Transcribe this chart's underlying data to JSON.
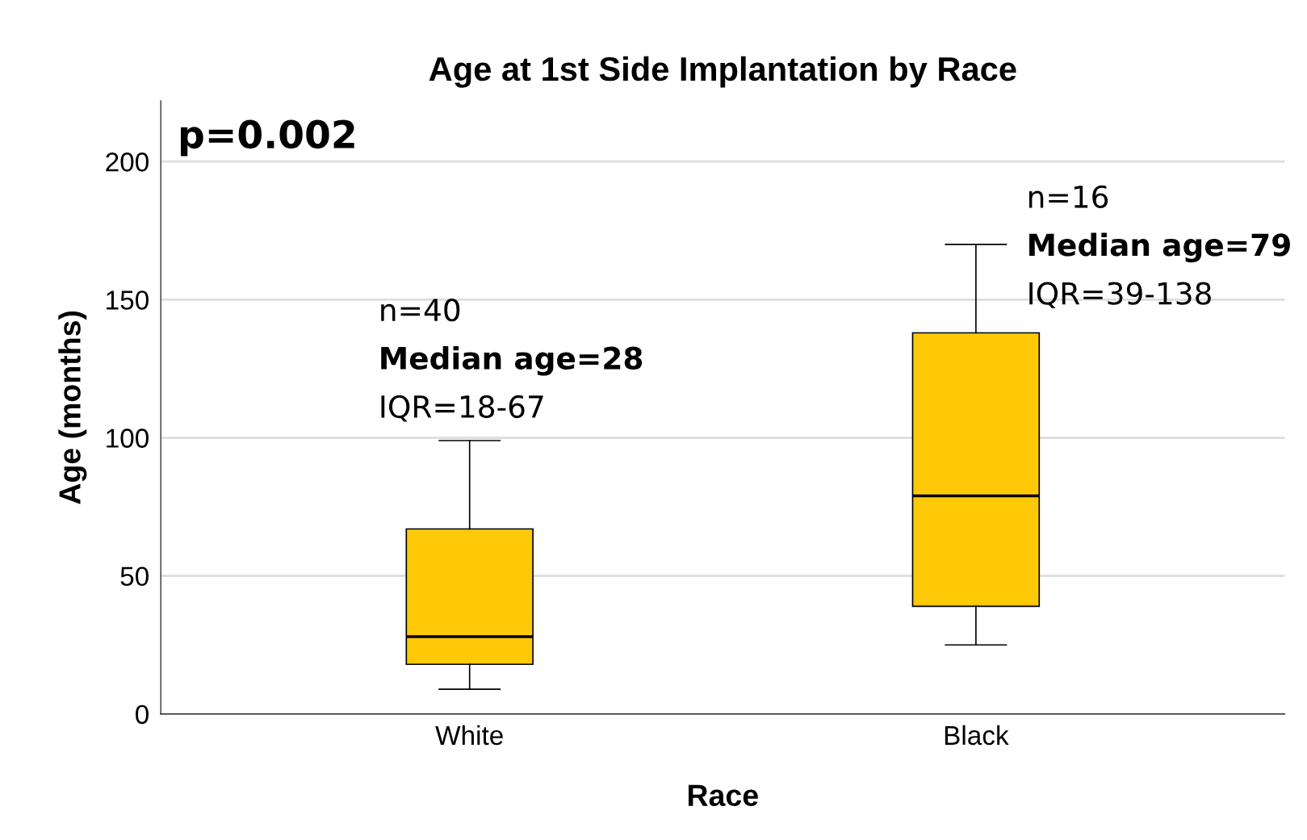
{
  "chart_data": {
    "type": "box",
    "title": "Age at 1st Side Implantation by Race",
    "xlabel": "Race",
    "ylabel": "Age (months)",
    "categories": [
      "White",
      "Black"
    ],
    "boxes": [
      {
        "low": 9,
        "q1": 18,
        "median": 28,
        "q3": 67,
        "high": 99
      },
      {
        "low": 25,
        "q1": 39,
        "median": 79,
        "q3": 138,
        "high": 170
      }
    ],
    "color": "#ffc907",
    "ylim": [
      0,
      222
    ],
    "yticks": [
      0,
      50,
      100,
      150,
      200
    ],
    "grid": "y",
    "annotations": [
      "p=0.002",
      "n=40",
      "Median age=28",
      "IQR=18-67",
      "n=16",
      "Median age=79",
      "IQR=39-138"
    ]
  }
}
